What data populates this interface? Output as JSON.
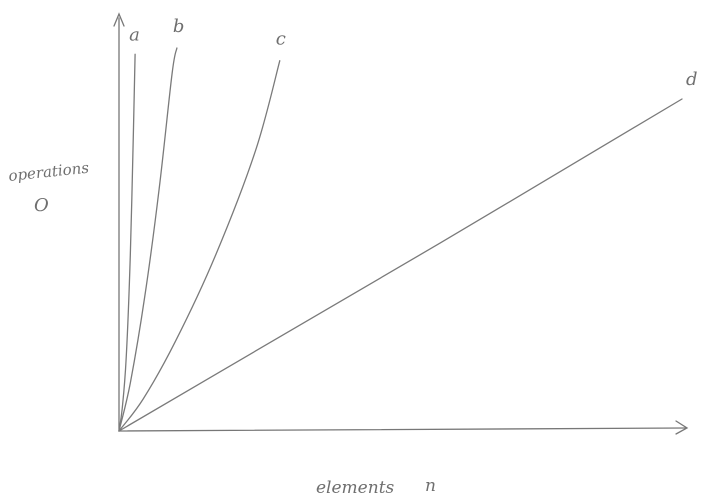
{
  "chart_data": {
    "type": "line",
    "title": "",
    "xlabel": "elements",
    "xlabel_symbol": "n",
    "ylabel": "operations",
    "ylabel_symbol": "O",
    "series": [
      {
        "name": "a",
        "points": [
          [
            0,
            0
          ],
          [
            0.2,
            7
          ],
          [
            0.45,
            23
          ],
          [
            0.7,
            55
          ],
          [
            0.9,
            95
          ],
          [
            1.0,
            118
          ]
        ]
      },
      {
        "name": "b",
        "points": [
          [
            0,
            0
          ],
          [
            0.7,
            15
          ],
          [
            1.6,
            42
          ],
          [
            2.5,
            76
          ],
          [
            3.3,
            112
          ],
          [
            3.6,
            120
          ]
        ]
      },
      {
        "name": "c",
        "points": [
          [
            0,
            0
          ],
          [
            1.5,
            10
          ],
          [
            3.5,
            28
          ],
          [
            6.0,
            55
          ],
          [
            8.5,
            88
          ],
          [
            10.0,
            116
          ]
        ]
      },
      {
        "name": "d",
        "points": [
          [
            0,
            0
          ],
          [
            10,
            29.5
          ],
          [
            20,
            59
          ],
          [
            30,
            89
          ],
          [
            35,
            104
          ]
        ]
      }
    ],
    "xlim": [
      0,
      35.5
    ],
    "ylim": [
      0,
      125
    ],
    "grid": false,
    "legend": "none",
    "ink_color": "#777777"
  }
}
